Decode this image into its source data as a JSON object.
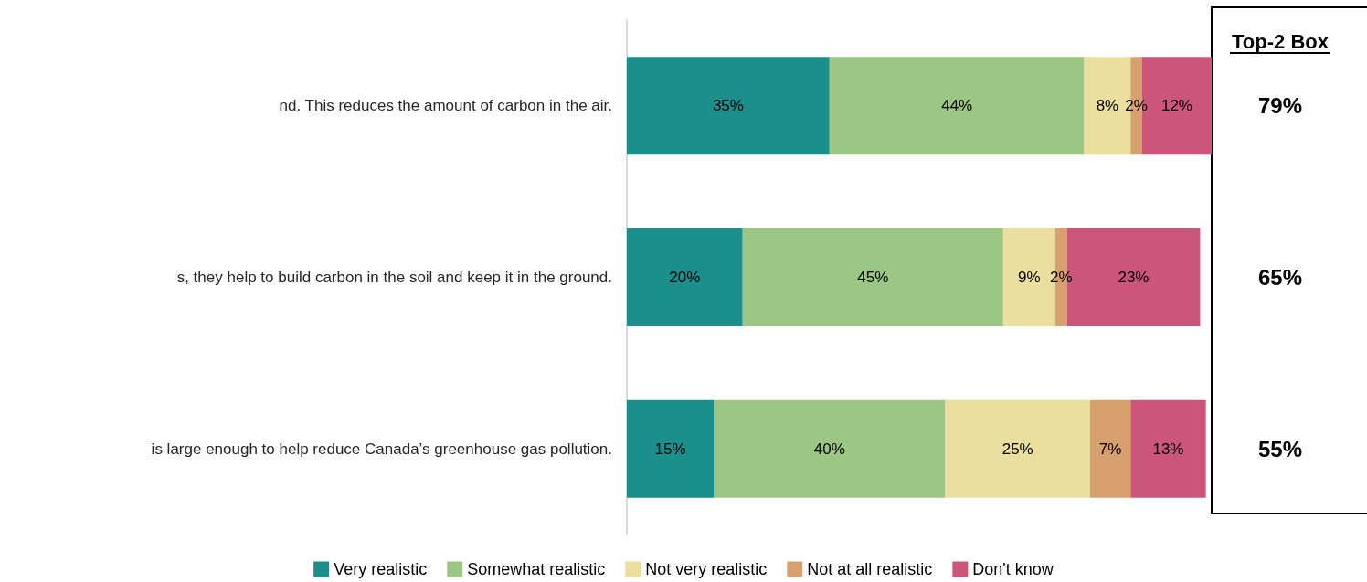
{
  "chart_data": {
    "type": "bar",
    "orientation": "horizontal",
    "stacked": true,
    "categories": [
      "nd. This reduces the amount of carbon in the air.",
      "s, they help to build carbon in the soil and keep it in the ground.",
      "is large enough to help reduce Canada’s greenhouse gas pollution."
    ],
    "series": [
      {
        "name": "Very realistic",
        "color": "#1a8f8c",
        "values": [
          35,
          20,
          15
        ],
        "value_labels": [
          "35%",
          "20%",
          "15%"
        ]
      },
      {
        "name": "Somewhat realistic",
        "color": "#9bc683",
        "values": [
          44,
          45,
          40
        ],
        "value_labels": [
          "44%",
          "45%",
          "40%"
        ]
      },
      {
        "name": "Not very realistic",
        "color": "#ebdfa0",
        "values": [
          8,
          9,
          25
        ],
        "value_labels": [
          "8%",
          "9%",
          "25%"
        ]
      },
      {
        "name": "Not at all realistic",
        "color": "#d8a06e",
        "values": [
          2,
          2,
          7
        ],
        "value_labels": [
          "2%",
          "2%",
          "7%"
        ]
      },
      {
        "name": "Don't know",
        "color": "#cc5679",
        "values": [
          12,
          23,
          13
        ],
        "value_labels": [
          "12%",
          "23%",
          "13%"
        ]
      }
    ],
    "xlim": [
      0,
      101
    ],
    "tick_labels": "y",
    "legend": "bottom",
    "annotations": [
      "Top-2 Box",
      "79%",
      "65%",
      "55%"
    ]
  }
}
